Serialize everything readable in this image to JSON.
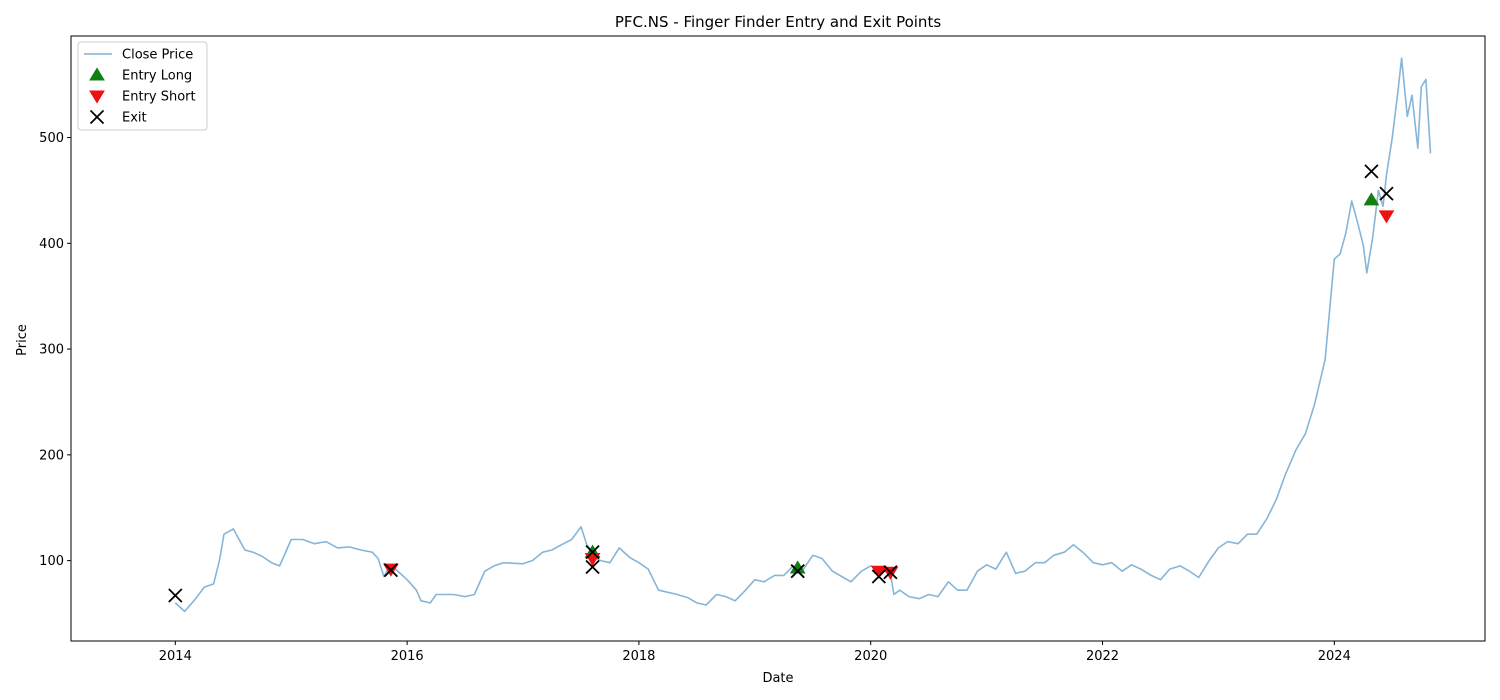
{
  "chart_data": {
    "type": "line",
    "title": "PFC.NS - Finger Finder Entry and Exit Points",
    "xlabel": "Date",
    "ylabel": "Price",
    "xlim": [
      2013.1,
      2025.3
    ],
    "ylim": [
      24,
      596
    ],
    "x_ticks": [
      2014,
      2016,
      2018,
      2020,
      2022,
      2024
    ],
    "x_tick_labels": [
      "2014",
      "2016",
      "2018",
      "2020",
      "2022",
      "2024"
    ],
    "y_ticks": [
      100,
      200,
      300,
      400,
      500
    ],
    "y_tick_labels": [
      "100",
      "200",
      "300",
      "400",
      "500"
    ],
    "grid": false,
    "legend_position": "upper-left",
    "colors": {
      "close": "#7fb1d6",
      "long": "#118011",
      "short": "#ee1111",
      "exit": "#000000"
    },
    "series": [
      {
        "name": "Close Price",
        "type": "line",
        "points": [
          [
            2014.0,
            60
          ],
          [
            2014.08,
            52
          ],
          [
            2014.16,
            62
          ],
          [
            2014.25,
            75
          ],
          [
            2014.33,
            78
          ],
          [
            2014.38,
            100
          ],
          [
            2014.42,
            125
          ],
          [
            2014.5,
            130
          ],
          [
            2014.55,
            120
          ],
          [
            2014.6,
            110
          ],
          [
            2014.67,
            108
          ],
          [
            2014.75,
            104
          ],
          [
            2014.83,
            98
          ],
          [
            2014.9,
            95
          ],
          [
            2015.0,
            120
          ],
          [
            2015.1,
            120
          ],
          [
            2015.2,
            116
          ],
          [
            2015.3,
            118
          ],
          [
            2015.4,
            112
          ],
          [
            2015.5,
            113
          ],
          [
            2015.6,
            110
          ],
          [
            2015.7,
            108
          ],
          [
            2015.75,
            102
          ],
          [
            2015.8,
            85
          ],
          [
            2015.85,
            95
          ],
          [
            2015.9,
            92
          ],
          [
            2016.0,
            82
          ],
          [
            2016.08,
            72
          ],
          [
            2016.12,
            62
          ],
          [
            2016.2,
            60
          ],
          [
            2016.25,
            68
          ],
          [
            2016.4,
            68
          ],
          [
            2016.5,
            66
          ],
          [
            2016.58,
            68
          ],
          [
            2016.67,
            90
          ],
          [
            2016.75,
            95
          ],
          [
            2016.83,
            98
          ],
          [
            2017.0,
            97
          ],
          [
            2017.08,
            100
          ],
          [
            2017.17,
            108
          ],
          [
            2017.25,
            110
          ],
          [
            2017.33,
            115
          ],
          [
            2017.42,
            120
          ],
          [
            2017.5,
            132
          ],
          [
            2017.55,
            115
          ],
          [
            2017.6,
            108
          ],
          [
            2017.63,
            102
          ],
          [
            2017.67,
            100
          ],
          [
            2017.75,
            98
          ],
          [
            2017.83,
            112
          ],
          [
            2017.92,
            103
          ],
          [
            2018.0,
            98
          ],
          [
            2018.08,
            92
          ],
          [
            2018.17,
            72
          ],
          [
            2018.25,
            70
          ],
          [
            2018.33,
            68
          ],
          [
            2018.42,
            65
          ],
          [
            2018.5,
            60
          ],
          [
            2018.58,
            58
          ],
          [
            2018.67,
            68
          ],
          [
            2018.75,
            66
          ],
          [
            2018.83,
            62
          ],
          [
            2018.92,
            72
          ],
          [
            2019.0,
            82
          ],
          [
            2019.08,
            80
          ],
          [
            2019.17,
            86
          ],
          [
            2019.25,
            86
          ],
          [
            2019.33,
            95
          ],
          [
            2019.42,
            92
          ],
          [
            2019.5,
            105
          ],
          [
            2019.58,
            102
          ],
          [
            2019.67,
            90
          ],
          [
            2019.75,
            85
          ],
          [
            2019.83,
            80
          ],
          [
            2019.92,
            90
          ],
          [
            2020.0,
            95
          ],
          [
            2020.08,
            92
          ],
          [
            2020.17,
            88
          ],
          [
            2020.2,
            68
          ],
          [
            2020.25,
            72
          ],
          [
            2020.33,
            66
          ],
          [
            2020.42,
            64
          ],
          [
            2020.5,
            68
          ],
          [
            2020.58,
            66
          ],
          [
            2020.67,
            80
          ],
          [
            2020.75,
            72
          ],
          [
            2020.83,
            72
          ],
          [
            2020.92,
            90
          ],
          [
            2021.0,
            96
          ],
          [
            2021.08,
            92
          ],
          [
            2021.17,
            108
          ],
          [
            2021.25,
            88
          ],
          [
            2021.33,
            90
          ],
          [
            2021.42,
            98
          ],
          [
            2021.5,
            98
          ],
          [
            2021.58,
            105
          ],
          [
            2021.67,
            108
          ],
          [
            2021.75,
            115
          ],
          [
            2021.83,
            108
          ],
          [
            2021.92,
            98
          ],
          [
            2022.0,
            96
          ],
          [
            2022.08,
            98
          ],
          [
            2022.17,
            90
          ],
          [
            2022.25,
            96
          ],
          [
            2022.33,
            92
          ],
          [
            2022.42,
            86
          ],
          [
            2022.5,
            82
          ],
          [
            2022.58,
            92
          ],
          [
            2022.67,
            95
          ],
          [
            2022.75,
            90
          ],
          [
            2022.83,
            84
          ],
          [
            2022.92,
            100
          ],
          [
            2023.0,
            112
          ],
          [
            2023.08,
            118
          ],
          [
            2023.17,
            116
          ],
          [
            2023.25,
            125
          ],
          [
            2023.33,
            125
          ],
          [
            2023.42,
            140
          ],
          [
            2023.5,
            158
          ],
          [
            2023.58,
            182
          ],
          [
            2023.67,
            205
          ],
          [
            2023.75,
            220
          ],
          [
            2023.83,
            248
          ],
          [
            2023.92,
            290
          ],
          [
            2024.0,
            385
          ],
          [
            2024.05,
            390
          ],
          [
            2024.1,
            410
          ],
          [
            2024.15,
            440
          ],
          [
            2024.2,
            420
          ],
          [
            2024.25,
            398
          ],
          [
            2024.28,
            372
          ],
          [
            2024.33,
            405
          ],
          [
            2024.38,
            450
          ],
          [
            2024.42,
            435
          ],
          [
            2024.45,
            465
          ],
          [
            2024.5,
            500
          ],
          [
            2024.55,
            545
          ],
          [
            2024.58,
            575
          ],
          [
            2024.63,
            520
          ],
          [
            2024.67,
            540
          ],
          [
            2024.72,
            490
          ],
          [
            2024.75,
            548
          ],
          [
            2024.79,
            555
          ],
          [
            2024.83,
            485
          ]
        ]
      },
      {
        "name": "Entry Long",
        "type": "marker",
        "marker": "triangle-up",
        "points": [
          [
            2017.6,
            108
          ],
          [
            2019.37,
            93
          ],
          [
            2024.32,
            441
          ]
        ]
      },
      {
        "name": "Entry Short",
        "type": "marker",
        "marker": "triangle-down",
        "points": [
          [
            2015.86,
            92
          ],
          [
            2017.6,
            102
          ],
          [
            2020.07,
            90
          ],
          [
            2020.17,
            89
          ],
          [
            2024.45,
            426
          ]
        ]
      },
      {
        "name": "Exit",
        "type": "marker",
        "marker": "x",
        "points": [
          [
            2014.0,
            67
          ],
          [
            2015.86,
            91
          ],
          [
            2017.6,
            108
          ],
          [
            2017.6,
            94
          ],
          [
            2019.37,
            90
          ],
          [
            2020.07,
            85
          ],
          [
            2020.17,
            89
          ],
          [
            2024.32,
            468
          ],
          [
            2024.45,
            447
          ]
        ]
      }
    ],
    "legend": [
      {
        "label": "Close Price",
        "marker": "line"
      },
      {
        "label": "Entry Long",
        "marker": "triangle-up"
      },
      {
        "label": "Entry Short",
        "marker": "triangle-down"
      },
      {
        "label": "Exit",
        "marker": "x"
      }
    ]
  }
}
